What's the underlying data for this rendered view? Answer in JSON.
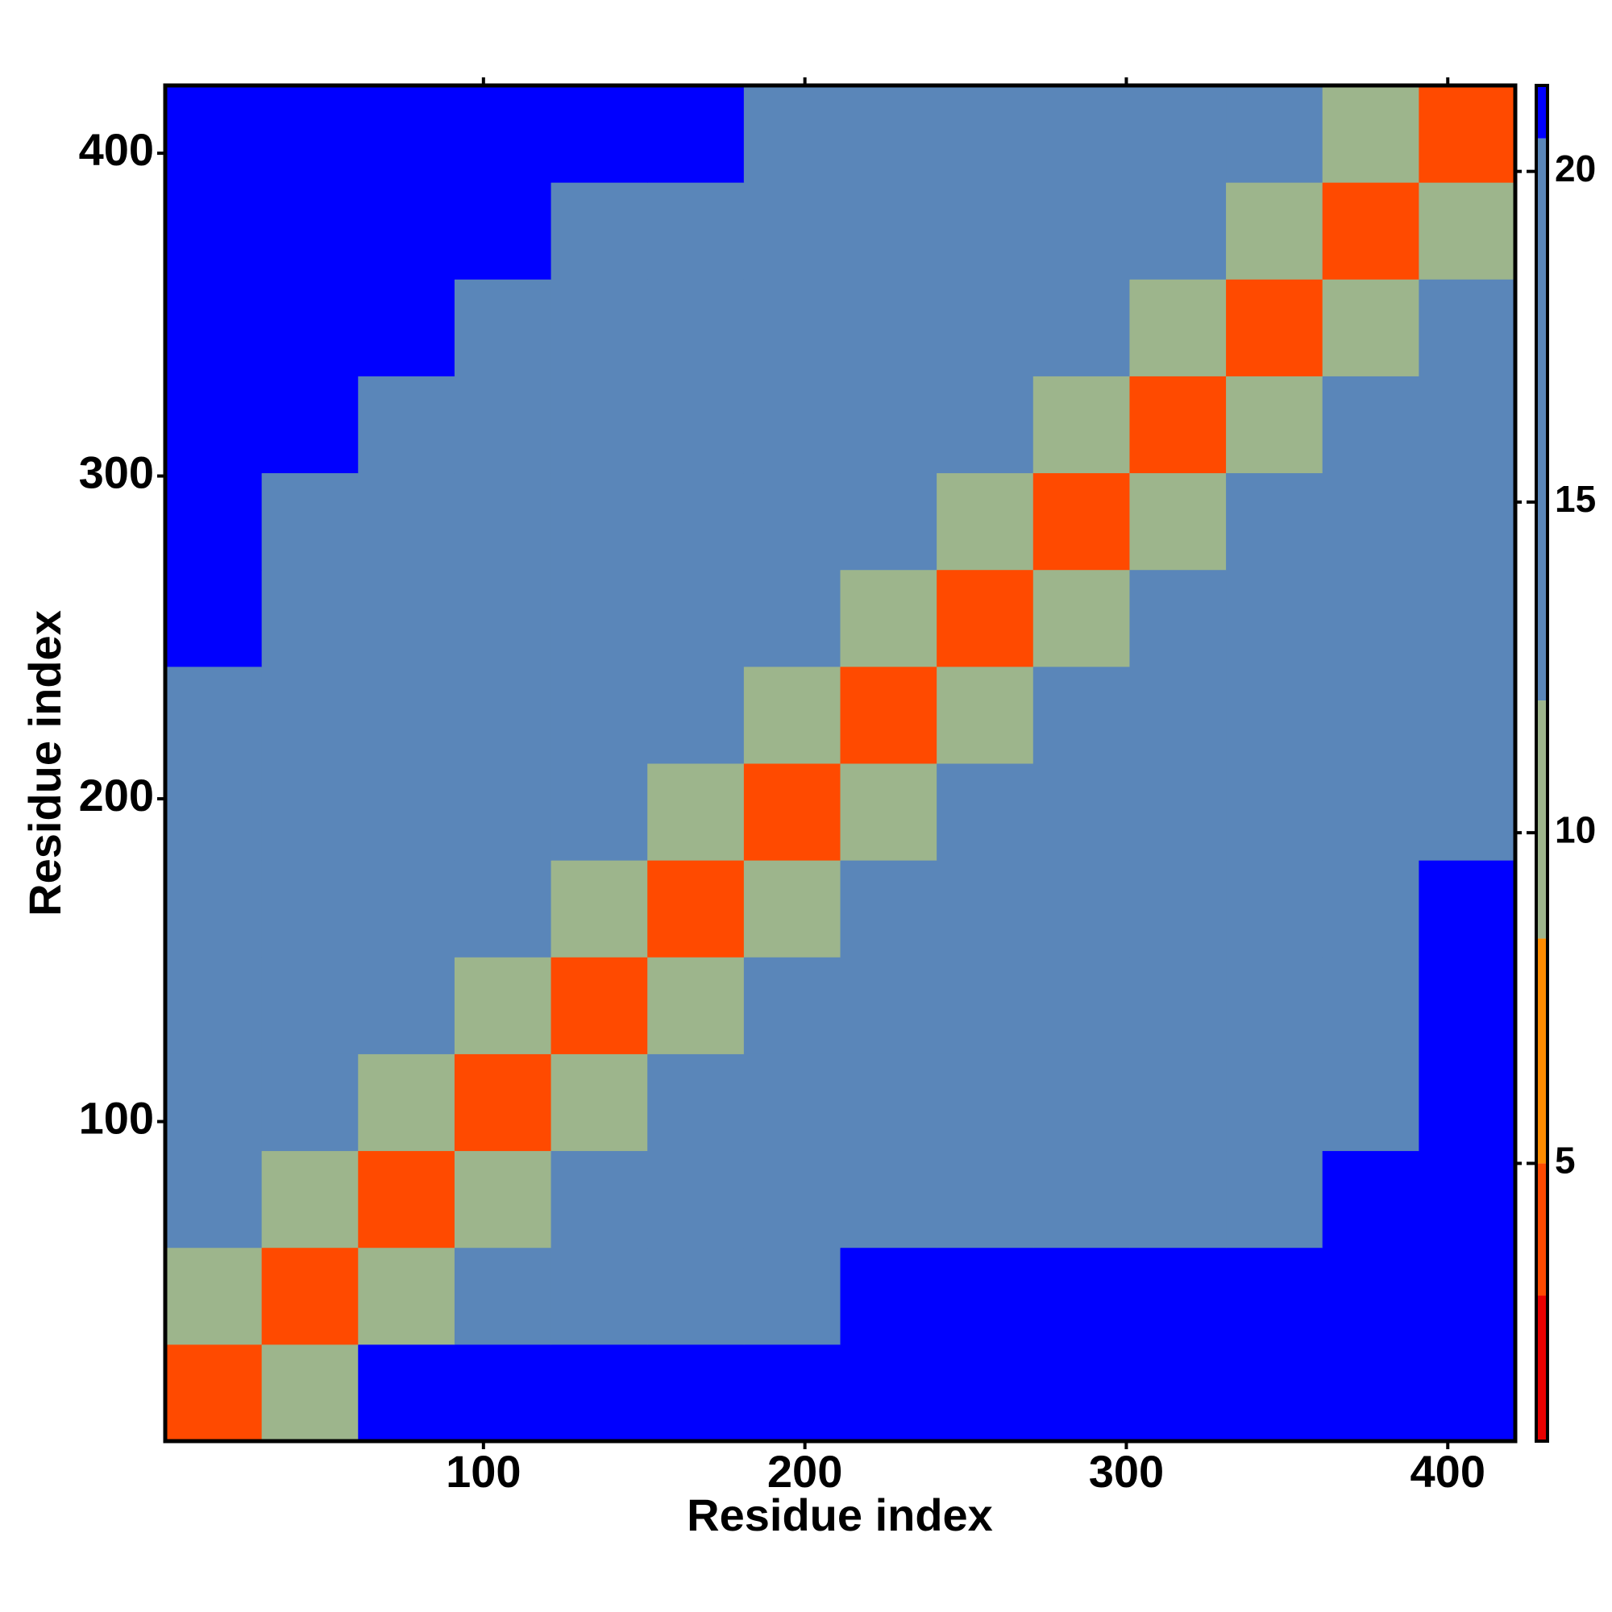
{
  "chart_data": {
    "type": "heatmap",
    "x_label": "Residue index",
    "y_label": "Residue index",
    "xlim": [
      1,
      421
    ],
    "ylim": [
      1,
      421
    ],
    "xticks": [
      100,
      200,
      300,
      400
    ],
    "yticks": [
      100,
      200,
      300,
      400
    ],
    "x_bins": [
      1,
      31,
      61,
      91,
      121,
      151,
      181,
      211,
      241,
      271,
      301,
      331,
      361,
      391,
      421
    ],
    "y_bins": [
      1,
      31,
      61,
      91,
      121,
      151,
      181,
      211,
      241,
      271,
      301,
      331,
      361,
      391,
      421
    ],
    "matrix": [
      [
        4,
        9,
        21,
        21,
        21,
        21,
        21,
        21,
        21,
        21,
        21,
        21,
        21,
        21
      ],
      [
        9,
        4,
        9,
        14,
        18,
        19,
        20,
        21,
        21,
        21,
        21,
        21,
        21,
        21
      ],
      [
        14,
        9,
        4,
        9,
        14,
        17,
        18,
        18,
        19,
        19,
        20,
        20,
        21,
        21
      ],
      [
        19,
        14,
        9,
        4,
        9,
        14,
        17,
        18,
        18,
        18,
        18,
        19,
        20,
        21
      ],
      [
        19,
        17,
        14,
        9,
        4,
        9,
        14,
        17,
        18,
        18,
        18,
        18,
        19,
        21
      ],
      [
        20,
        18,
        17,
        14,
        9,
        4,
        9,
        14,
        17,
        18,
        18,
        18,
        19,
        21
      ],
      [
        20,
        19,
        17,
        17,
        14,
        9,
        4,
        9,
        14,
        17,
        18,
        18,
        19,
        20
      ],
      [
        20,
        19,
        18,
        17,
        17,
        14,
        9,
        4,
        9,
        14,
        17,
        18,
        18,
        19
      ],
      [
        21,
        20,
        18,
        18,
        17,
        17,
        14,
        9,
        4,
        9,
        14,
        17,
        18,
        18
      ],
      [
        21,
        20,
        19,
        18,
        18,
        17,
        17,
        14,
        9,
        4,
        9,
        14,
        17,
        18
      ],
      [
        21,
        21,
        19,
        18,
        18,
        18,
        17,
        17,
        14,
        9,
        4,
        9,
        14,
        17
      ],
      [
        21,
        21,
        21,
        19,
        18,
        18,
        18,
        17,
        17,
        14,
        9,
        4,
        9,
        14
      ],
      [
        21,
        21,
        21,
        21,
        19,
        19,
        18,
        18,
        17,
        17,
        14,
        9,
        4,
        9
      ],
      [
        21,
        21,
        21,
        21,
        21,
        21,
        19,
        19,
        18,
        18,
        17,
        14,
        9,
        4
      ]
    ],
    "clim": [
      0.8,
      21.3
    ],
    "cticks": [
      5,
      10,
      15,
      20
    ],
    "color_breaks": [
      3,
      5,
      8.4,
      12,
      20.5
    ],
    "colors": [
      "#e80000",
      "#ff4a00",
      "#ff8c00",
      "#9db58c",
      "#5a86b9",
      "#0000ff"
    ]
  }
}
